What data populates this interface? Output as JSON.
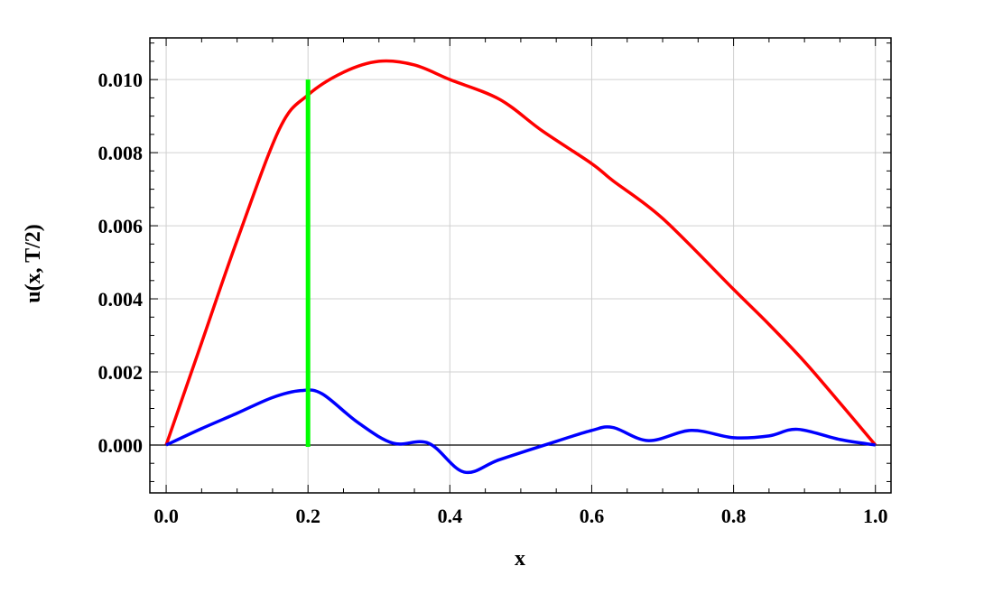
{
  "chart_data": {
    "type": "line",
    "title": "",
    "xlabel": "x",
    "ylabel": "u(x, T/2)",
    "xlim": [
      -0.023,
      1.022
    ],
    "ylim": [
      -0.00131,
      0.01114
    ],
    "grid": true,
    "x_ticks": [
      0.0,
      0.2,
      0.4,
      0.6,
      0.8,
      1.0
    ],
    "x_tick_labels": [
      "0.0",
      "0.2",
      "0.4",
      "0.6",
      "0.8",
      "1.0"
    ],
    "y_ticks": [
      0.0,
      0.002,
      0.004,
      0.006,
      0.008,
      0.01
    ],
    "y_tick_labels": [
      "0.000",
      "0.002",
      "0.004",
      "0.006",
      "0.008",
      "0.010"
    ],
    "series": [
      {
        "name": "red curve",
        "color": "#ff0000",
        "x": [
          0,
          0.05,
          0.1,
          0.16,
          0.2,
          0.25,
          0.3,
          0.35,
          0.4,
          0.47,
          0.53,
          0.6,
          0.63,
          0.7,
          0.8,
          0.85,
          0.9,
          0.95,
          1.0
        ],
        "y": [
          0,
          0.0028,
          0.0056,
          0.00866,
          0.00958,
          0.0102,
          0.0105,
          0.0104,
          0.01,
          0.00946,
          0.0086,
          0.0077,
          0.00723,
          0.0062,
          0.00426,
          0.0033,
          0.00228,
          0.00115,
          0
        ]
      },
      {
        "name": "blue curve",
        "color": "#0000ff",
        "x": [
          0,
          0.05,
          0.1,
          0.15,
          0.19,
          0.22,
          0.27,
          0.32,
          0.37,
          0.42,
          0.47,
          0.55,
          0.6,
          0.63,
          0.68,
          0.74,
          0.8,
          0.85,
          0.89,
          0.95,
          1.0
        ],
        "y": [
          0,
          0.00045,
          0.00087,
          0.0013,
          0.00149,
          0.0014,
          0.00062,
          5e-05,
          5e-05,
          -0.00074,
          -0.0004,
          0.0001,
          0.0004,
          0.00048,
          0.00012,
          0.0004,
          0.0002,
          0.00025,
          0.00043,
          0.00015,
          0
        ]
      }
    ],
    "vertical_marker": {
      "x": 0.2,
      "y_from": 0,
      "y_to": 0.01,
      "color": "#00ff00"
    }
  }
}
